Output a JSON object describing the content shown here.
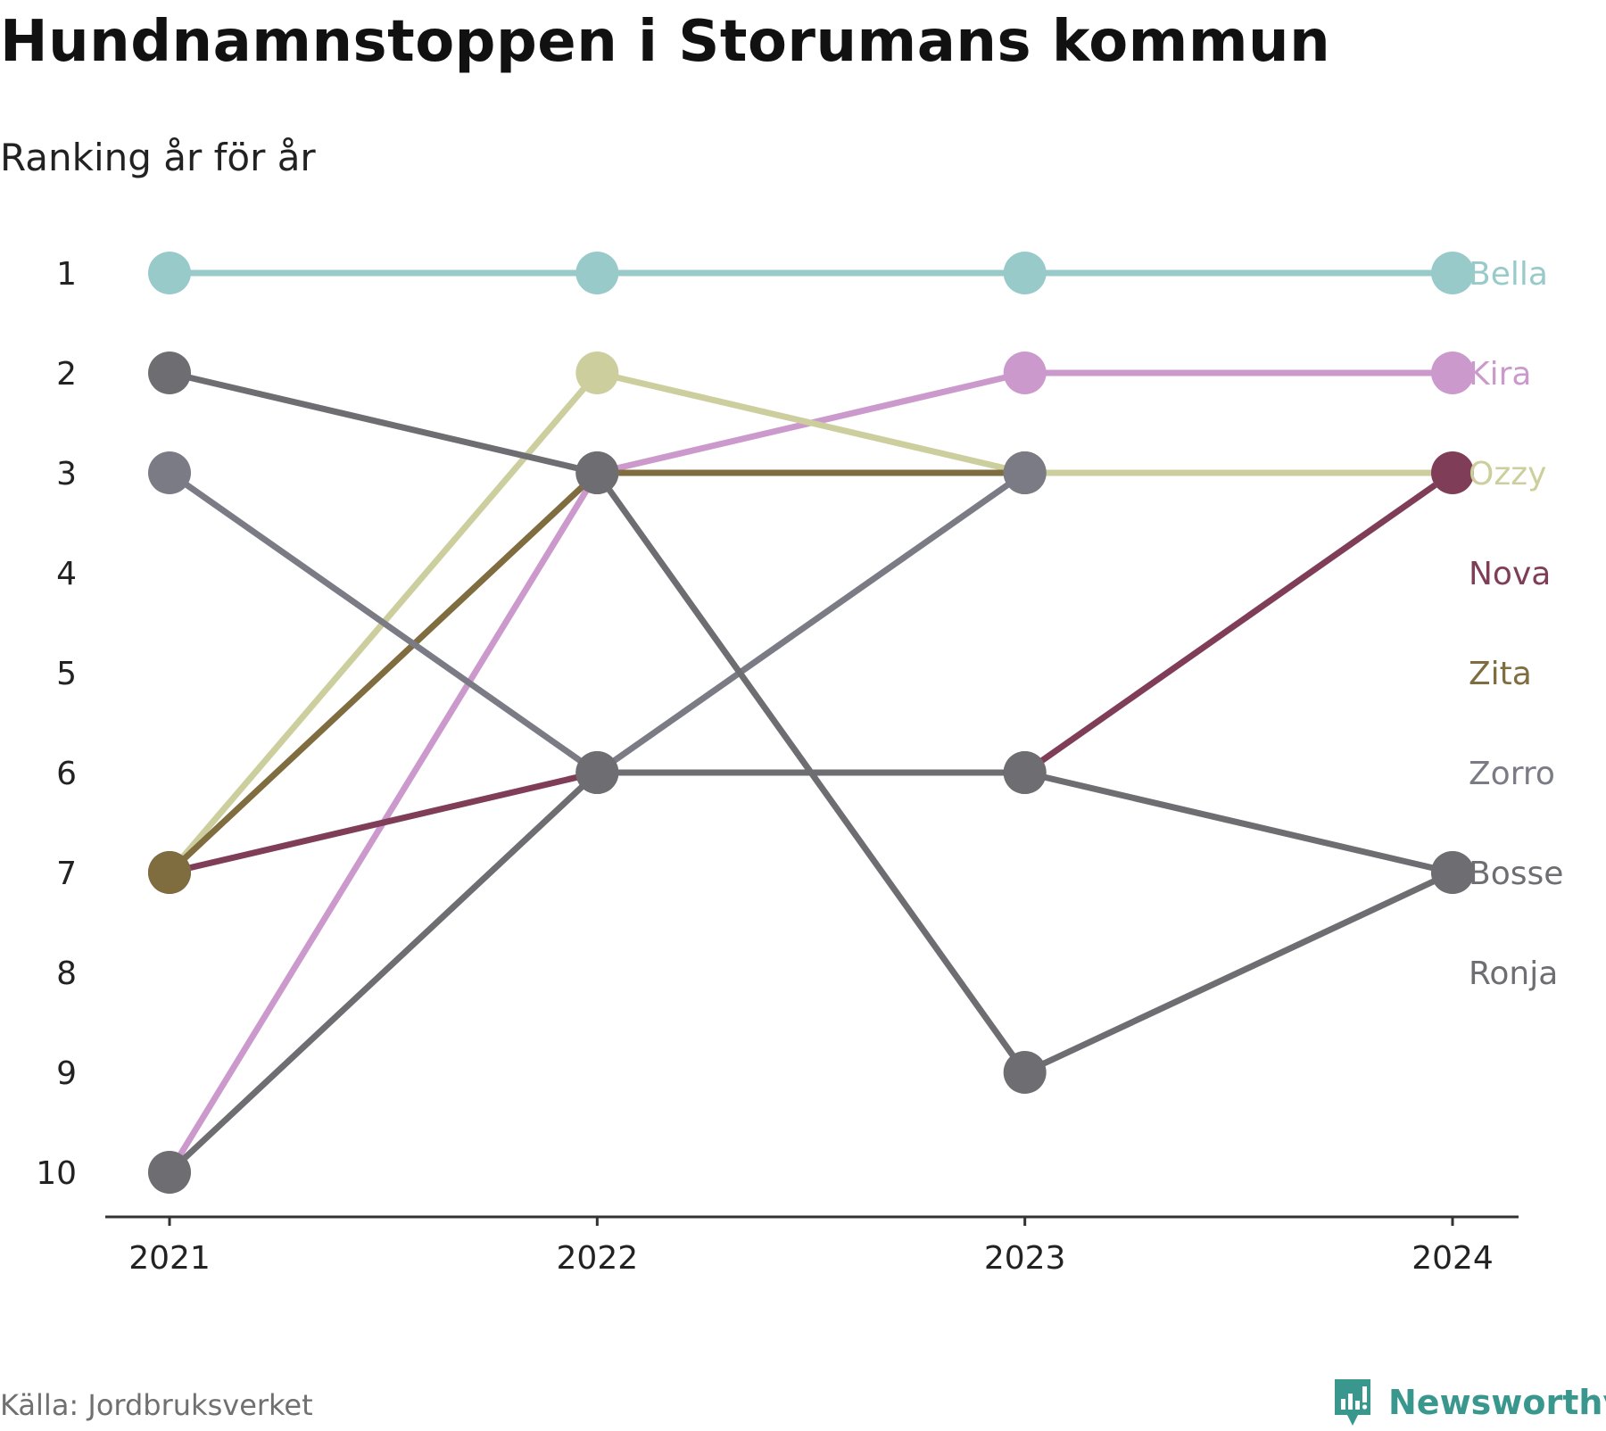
{
  "title": "Hundnamnstoppen i Storumans kommun",
  "subtitle": "Ranking år för år",
  "source": "Källa: Jordbruksverket",
  "brand": "Newsworthy",
  "brand_color": "#3a978e",
  "brand_icon": "newsworthy-logo-icon",
  "chart_data": {
    "type": "line",
    "x": [
      "2021",
      "2022",
      "2023",
      "2024"
    ],
    "ylim": [
      1,
      10
    ],
    "y_reversed": true,
    "y_ticks": [
      1,
      2,
      3,
      4,
      5,
      6,
      7,
      8,
      9,
      10
    ],
    "grid": false,
    "legend": "right-end labels",
    "series": [
      {
        "name": "Bella",
        "color": "#97cac9",
        "values": [
          1,
          1,
          1,
          1
        ]
      },
      {
        "name": "Kira",
        "color": "#cc99cd",
        "values": [
          10,
          3,
          2,
          2
        ]
      },
      {
        "name": "Ozzy",
        "color": "#cccf9d",
        "values": [
          7,
          2,
          3,
          3
        ]
      },
      {
        "name": "Nova",
        "color": "#803d58",
        "values": [
          7,
          6,
          6,
          3
        ]
      },
      {
        "name": "Zita",
        "color": "#7f6c3f",
        "values": [
          7,
          3,
          3,
          null
        ]
      },
      {
        "name": "Zorro",
        "color": "#7b7b86",
        "values": [
          3,
          6,
          3,
          null
        ]
      },
      {
        "name": "Bosse",
        "color": "#6e6e72",
        "values": [
          2,
          3,
          9,
          7
        ]
      },
      {
        "name": "Ronja",
        "color": "#6e6e72",
        "values": [
          10,
          6,
          6,
          7
        ]
      }
    ]
  }
}
